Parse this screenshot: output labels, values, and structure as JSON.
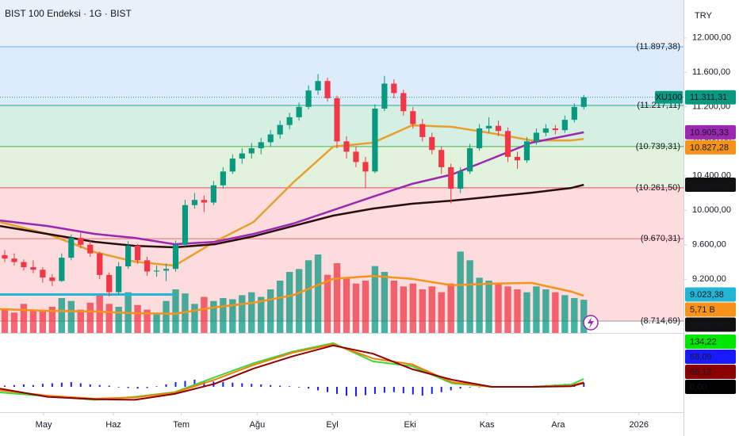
{
  "chart_data": {
    "type": "candlestick",
    "title": "BIST 100 Endeksi · 1G · BIST",
    "currency": "TRY",
    "xlim": [
      -0.5,
      71.5
    ],
    "xticks": [
      {
        "value": 4.1,
        "label": "May"
      },
      {
        "value": 11.45,
        "label": "Haz"
      },
      {
        "value": 18.6,
        "label": "Tem"
      },
      {
        "value": 26.6,
        "label": "Ağu"
      },
      {
        "value": 34.5,
        "label": "Eyl"
      },
      {
        "value": 42.7,
        "label": "Eki"
      },
      {
        "value": 50.8,
        "label": "Kas"
      },
      {
        "value": 58.3,
        "label": "Ara"
      },
      {
        "value": 66.8,
        "label": "2026"
      }
    ],
    "ylim": [
      8577,
      12440
    ],
    "yticks": [
      {
        "value": 12000,
        "label": "12.000,00"
      },
      {
        "value": 11600,
        "label": "11.600,00"
      },
      {
        "value": 11200,
        "label": "11.200,00"
      },
      {
        "value": 10800,
        "label": "10.800,00"
      },
      {
        "value": 10400,
        "label": "10.400,00"
      },
      {
        "value": 10000,
        "label": "10.000,00"
      },
      {
        "value": 9600,
        "label": "9.600,00"
      },
      {
        "value": 9200,
        "label": "9.200,00"
      }
    ],
    "up_color": "#089981",
    "down_color": "#f23645",
    "candles": [
      [
        9480,
        9540,
        9400,
        9440
      ],
      [
        9440,
        9500,
        9360,
        9400
      ],
      [
        9400,
        9430,
        9300,
        9340
      ],
      [
        9340,
        9420,
        9270,
        9310
      ],
      [
        9310,
        9340,
        9160,
        9220
      ],
      [
        9220,
        9260,
        9120,
        9180
      ],
      [
        9180,
        9500,
        9170,
        9450
      ],
      [
        9450,
        9720,
        9420,
        9680
      ],
      [
        9680,
        9740,
        9560,
        9600
      ],
      [
        9600,
        9650,
        9460,
        9500
      ],
      [
        9500,
        9520,
        9200,
        9250
      ],
      [
        9250,
        9280,
        9000,
        9050
      ],
      [
        9050,
        9400,
        9020,
        9350
      ],
      [
        9350,
        9640,
        9320,
        9590
      ],
      [
        9590,
        9610,
        9380,
        9420
      ],
      [
        9420,
        9460,
        9240,
        9290
      ],
      [
        9290,
        9360,
        9230,
        9300
      ],
      [
        9300,
        9380,
        9180,
        9320
      ],
      [
        9320,
        9650,
        9290,
        9600
      ],
      [
        9600,
        10120,
        9580,
        10060
      ],
      [
        10060,
        10200,
        10020,
        10120
      ],
      [
        10120,
        10170,
        9980,
        10090
      ],
      [
        10090,
        10340,
        10060,
        10290
      ],
      [
        10290,
        10500,
        10250,
        10450
      ],
      [
        10450,
        10650,
        10420,
        10600
      ],
      [
        10600,
        10720,
        10540,
        10660
      ],
      [
        10660,
        10780,
        10600,
        10720
      ],
      [
        10720,
        10840,
        10650,
        10790
      ],
      [
        10790,
        10930,
        10740,
        10880
      ],
      [
        10880,
        11040,
        10830,
        10990
      ],
      [
        10990,
        11130,
        10940,
        11080
      ],
      [
        11080,
        11250,
        11040,
        11200
      ],
      [
        11200,
        11450,
        11170,
        11390
      ],
      [
        11390,
        11580,
        11340,
        11500
      ],
      [
        11500,
        11540,
        11260,
        11300
      ],
      [
        11300,
        11330,
        10720,
        10800
      ],
      [
        10800,
        10860,
        10600,
        10680
      ],
      [
        10680,
        10740,
        10500,
        10560
      ],
      [
        10560,
        10620,
        10260,
        10450
      ],
      [
        10450,
        11230,
        10430,
        11180
      ],
      [
        11180,
        11560,
        11150,
        11470
      ],
      [
        11470,
        11520,
        11300,
        11360
      ],
      [
        11360,
        11400,
        11100,
        11150
      ],
      [
        11150,
        11200,
        10950,
        11000
      ],
      [
        11000,
        11060,
        10800,
        10850
      ],
      [
        10850,
        10900,
        10650,
        10700
      ],
      [
        10700,
        10740,
        10420,
        10500
      ],
      [
        10500,
        10540,
        10080,
        10250
      ],
      [
        10250,
        10500,
        10200,
        10450
      ],
      [
        10450,
        10770,
        10420,
        10720
      ],
      [
        10720,
        11000,
        10690,
        10950
      ],
      [
        10950,
        11080,
        10900,
        10980
      ],
      [
        10980,
        11040,
        10860,
        10920
      ],
      [
        10920,
        10960,
        10560,
        10620
      ],
      [
        10620,
        10680,
        10480,
        10580
      ],
      [
        10580,
        10850,
        10550,
        10800
      ],
      [
        10800,
        10950,
        10760,
        10900
      ],
      [
        10900,
        11000,
        10860,
        10950
      ],
      [
        10950,
        10990,
        10880,
        10930
      ],
      [
        10930,
        11100,
        10900,
        11050
      ],
      [
        11050,
        11240,
        11020,
        11200
      ],
      [
        11200,
        11340,
        11170,
        11311.31
      ]
    ],
    "levels": [
      {
        "value": 11897.38,
        "label": "(11.897,38)",
        "color": "#64b5f6",
        "fill": "#dcecfb"
      },
      {
        "value": 11217.11,
        "label": "(11.217,11)",
        "color": "#26a69a",
        "fill": "#d6efe3"
      },
      {
        "value": 10739.31,
        "label": "(10.739,31)",
        "color": "#4caf50",
        "fill": "#e3f2dc"
      },
      {
        "value": 10261.5,
        "label": "(10.261,50)",
        "color": "#e05260",
        "fill": "#fcdcdd"
      },
      {
        "value": 9670.31,
        "label": "(9.670,31)",
        "color": "#e57373",
        "fill": "#fcdcdd"
      },
      {
        "value": 8714.69,
        "label": "(8.714,69)",
        "color": "#9598a1"
      }
    ],
    "moving_averages": {
      "x": [
        -0.5,
        4.5,
        9.5,
        13.7,
        17.9,
        22.1,
        26.2,
        30.4,
        34.6,
        38.8,
        42.9,
        47.1,
        51.3,
        55.5,
        59.7,
        61
      ],
      "series": [
        {
          "color": "#e8a02c",
          "values": [
            9864,
            9726,
            9514,
            9404,
            9358,
            9634,
            9864,
            10324,
            10738,
            10784,
            10986,
            10968,
            10894,
            10811,
            10811,
            10827.28
          ]
        },
        {
          "color": "#9c27b0",
          "values": [
            9882,
            9818,
            9726,
            9680,
            9606,
            9634,
            9726,
            9846,
            10002,
            10158,
            10306,
            10416,
            10600,
            10784,
            10876,
            10905.33
          ]
        },
        {
          "color": "#2a0e0e",
          "values": [
            9818,
            9726,
            9634,
            9588,
            9570,
            9606,
            9698,
            9818,
            9938,
            10020,
            10076,
            10112,
            10158,
            10204,
            10259,
            10296.4
          ]
        }
      ]
    },
    "horizontal_line": {
      "value": 9023.38,
      "x": [
        -0.5,
        17.9
      ],
      "color": "#22b5d6"
    },
    "volume": {
      "lim": [
        0,
        15
      ],
      "values": [
        4.2,
        3.5,
        5.0,
        4.0,
        3.8,
        4.5,
        6.0,
        5.5,
        4.0,
        5.2,
        6.5,
        5.0,
        4.5,
        7.0,
        4.8,
        4.0,
        3.5,
        5.5,
        7.5,
        6.8,
        5.0,
        6.2,
        5.5,
        6.0,
        5.8,
        6.5,
        7.0,
        6.2,
        7.5,
        9.0,
        10.5,
        11.0,
        12.5,
        13.5,
        10.0,
        12.0,
        9.5,
        8.5,
        9.0,
        11.5,
        10.5,
        9.0,
        8.0,
        8.5,
        7.5,
        8.0,
        7.0,
        8.5,
        14.0,
        12.5,
        9.5,
        9.0,
        8.5,
        8.0,
        7.5,
        7.0,
        8.0,
        7.5,
        7.0,
        6.5,
        6.0,
        5.71
      ],
      "ma_color": "#f7931a",
      "ma_values": [
        4.1,
        3.8,
        3.7,
        3.4,
        3.3,
        4.4,
        5.2,
        6.5,
        9.3,
        9.8,
        9.3,
        8.2,
        8.5,
        8.6,
        7.1,
        6.4
      ]
    },
    "macd": {
      "lim": [
        -430,
        845
      ],
      "series": [
        {
          "color": "#3cd63c",
          "values": [
            -94,
            -160,
            -220,
            -170,
            -90,
            160,
            400,
            600,
            740,
            430,
            350,
            60,
            0,
            0,
            40,
            134.22
          ]
        },
        {
          "color": "#f57c00",
          "values": [
            -60,
            -150,
            -200,
            -180,
            -100,
            120,
            370,
            580,
            720,
            480,
            380,
            80,
            0,
            0,
            20,
            80
          ]
        },
        {
          "color": "#8b0000",
          "values": [
            -30,
            -170,
            -210,
            -220,
            -120,
            50,
            310,
            520,
            700,
            560,
            300,
            120,
            0,
            0,
            10,
            66.12
          ]
        }
      ],
      "histogram": {
        "color": "#1a1aff",
        "values": [
          20,
          30,
          40,
          30,
          50,
          60,
          70,
          80,
          60,
          40,
          30,
          20,
          -10,
          -20,
          -30,
          -20,
          10,
          40,
          80,
          100,
          120,
          100,
          90,
          80,
          70,
          60,
          50,
          40,
          30,
          20,
          10,
          -10,
          -30,
          -60,
          -90,
          -120,
          -150,
          -160,
          -140,
          -120,
          -100,
          -90,
          -110,
          -130,
          -150,
          -120,
          -90,
          -60,
          -30,
          -10,
          0,
          0,
          0,
          0,
          0,
          10,
          20,
          30,
          40,
          50,
          60,
          68.09
        ]
      }
    },
    "price_tags": [
      {
        "name": "XU100",
        "value": 11311.31,
        "label": "11.311,31",
        "color": "#089981"
      },
      {
        "value": 10905.33,
        "label": "10.905,33",
        "color": "#9c27b0"
      },
      {
        "value": 10827.28,
        "label": "10.827,28",
        "color": "#f7931a"
      },
      {
        "value": 10296.4,
        "label": "10.296,40",
        "color": "#111111"
      },
      {
        "value": 9023.38,
        "label": "9.023,38",
        "color": "#22b5d6"
      },
      {
        "value": 5.71,
        "label": "5,71 B",
        "color": "#f7931a",
        "scale": "volume"
      },
      {
        "value": 8982.41,
        "label": "8.982,41",
        "color": "#111111"
      }
    ],
    "macd_tags": [
      {
        "value": 134.22,
        "label": "134,22",
        "color": "#00e600"
      },
      {
        "value": 68.09,
        "label": "68,09",
        "color": "#1a1aff"
      },
      {
        "value": 66.12,
        "label": "66,12",
        "color": "#8b0000"
      },
      {
        "value": 0,
        "label": "0,00",
        "color": "#000000"
      }
    ]
  }
}
